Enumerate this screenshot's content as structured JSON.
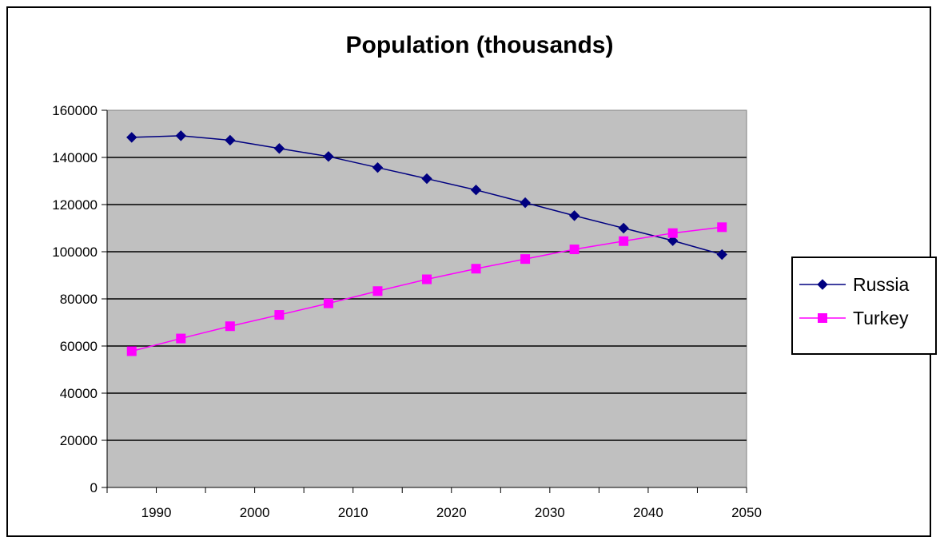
{
  "chart_data": {
    "type": "line",
    "title": "Population (thousands)",
    "xlabel": "",
    "ylabel": "",
    "x": [
      1987.5,
      1992.5,
      1997.5,
      2002.5,
      2007.5,
      2012.5,
      2017.5,
      2022.5,
      2027.5,
      2032.5,
      2037.5,
      2042.5,
      2047.5
    ],
    "xlim": [
      1985,
      2050
    ],
    "ylim": [
      0,
      160000
    ],
    "x_ticks": [
      1990,
      2000,
      2010,
      2020,
      2030,
      2040,
      2050
    ],
    "x_tick_labels": [
      "1990",
      "2000",
      "2010",
      "2020",
      "2030",
      "2040",
      "2050"
    ],
    "y_ticks": [
      0,
      20000,
      40000,
      60000,
      80000,
      100000,
      120000,
      140000,
      160000
    ],
    "y_tick_labels": [
      "0",
      "20000",
      "40000",
      "60000",
      "80000",
      "100000",
      "120000",
      "140000",
      "160000"
    ],
    "grid": "horizontal",
    "legend_position": "right",
    "plot_background": "#c0c0c0",
    "series": [
      {
        "name": "Russia",
        "color": "#000080",
        "marker": "diamond",
        "values": [
          148500,
          149200,
          147300,
          143800,
          140400,
          135700,
          131000,
          126200,
          120800,
          115300,
          110000,
          104700,
          98800
        ]
      },
      {
        "name": "Turkey",
        "color": "#ff00ff",
        "marker": "square",
        "values": [
          57800,
          63200,
          68400,
          73200,
          78100,
          83300,
          88300,
          92800,
          96900,
          101000,
          104500,
          107900,
          110400
        ]
      }
    ]
  }
}
